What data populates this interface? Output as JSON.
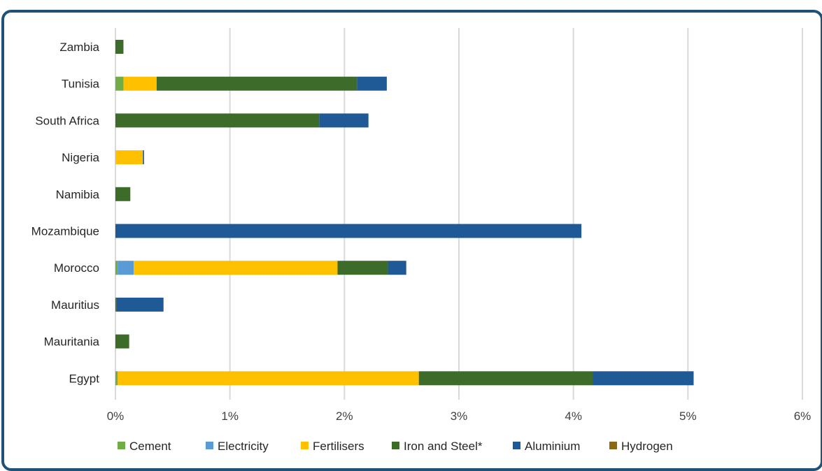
{
  "chart_data": {
    "type": "bar",
    "orientation": "horizontal",
    "stacked": true,
    "title": "",
    "categories": [
      "Zambia",
      "Tunisia",
      "South Africa",
      "Nigeria",
      "Namibia",
      "Mozambique",
      "Morocco",
      "Mauritius",
      "Mauritania",
      "Egypt"
    ],
    "series": [
      {
        "name": "Cement",
        "color": "#70ad47",
        "values": [
          0,
          0.07,
          0,
          0,
          0,
          0,
          0.02,
          0,
          0,
          0.02
        ]
      },
      {
        "name": "Electricity",
        "color": "#5b9bd5",
        "values": [
          0,
          0,
          0,
          0,
          0,
          0,
          0.14,
          0,
          0,
          0
        ]
      },
      {
        "name": "Fertilisers",
        "color": "#ffc000",
        "values": [
          0,
          0.29,
          0,
          0.24,
          0,
          0,
          1.78,
          0,
          0,
          2.63
        ]
      },
      {
        "name": "Iron and Steel*",
        "color": "#3d6b2a",
        "values": [
          0.07,
          1.75,
          1.78,
          0,
          0.13,
          0,
          0.44,
          0.01,
          0.12,
          1.52
        ]
      },
      {
        "name": "Aluminium",
        "color": "#1f5a96",
        "values": [
          0,
          0.26,
          0.43,
          0.01,
          0,
          4.07,
          0.16,
          0.41,
          0,
          0.88
        ]
      },
      {
        "name": "Hydrogen",
        "color": "#8b6914",
        "values": [
          0,
          0,
          0,
          0,
          0,
          0,
          0,
          0,
          0,
          0
        ]
      }
    ],
    "xlim": [
      0,
      6
    ],
    "x_ticks": [
      "0%",
      "1%",
      "2%",
      "3%",
      "4%",
      "5%",
      "6%"
    ],
    "grid": true,
    "legend": "bottom"
  }
}
